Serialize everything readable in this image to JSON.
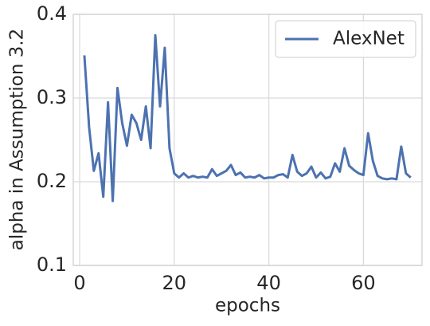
{
  "chart_data": {
    "type": "line",
    "x_label": "epochs",
    "y_label": "alpha in Assumption 3.2",
    "x": [
      1,
      2,
      3,
      4,
      5,
      6,
      7,
      8,
      9,
      10,
      11,
      12,
      13,
      14,
      15,
      16,
      17,
      18,
      19,
      20,
      21,
      22,
      23,
      24,
      25,
      26,
      27,
      28,
      29,
      30,
      31,
      32,
      33,
      34,
      35,
      36,
      37,
      38,
      39,
      40,
      41,
      42,
      43,
      44,
      45,
      46,
      47,
      48,
      49,
      50,
      51,
      52,
      53,
      54,
      55,
      56,
      57,
      58,
      59,
      60,
      61,
      62,
      63,
      64,
      65,
      66,
      67,
      68,
      69,
      70
    ],
    "series": [
      {
        "name": "AlexNet",
        "color": "#4c72b0",
        "values": [
          0.351,
          0.265,
          0.213,
          0.234,
          0.182,
          0.295,
          0.177,
          0.312,
          0.27,
          0.243,
          0.28,
          0.27,
          0.25,
          0.29,
          0.24,
          0.375,
          0.29,
          0.36,
          0.24,
          0.21,
          0.205,
          0.21,
          0.205,
          0.207,
          0.205,
          0.206,
          0.205,
          0.215,
          0.207,
          0.21,
          0.213,
          0.22,
          0.208,
          0.211,
          0.205,
          0.206,
          0.205,
          0.208,
          0.204,
          0.205,
          0.205,
          0.208,
          0.209,
          0.205,
          0.232,
          0.212,
          0.207,
          0.21,
          0.218,
          0.205,
          0.211,
          0.204,
          0.206,
          0.222,
          0.212,
          0.24,
          0.219,
          0.214,
          0.21,
          0.208,
          0.258,
          0.225,
          0.207,
          0.204,
          0.203,
          0.204,
          0.203,
          0.242,
          0.21,
          0.205
        ]
      }
    ],
    "xlim": [
      -1.35,
      72.4
    ],
    "xticks": [
      0,
      20,
      40,
      60
    ],
    "ylim": [
      0.1,
      0.4
    ],
    "yticks": [
      {
        "value": 0.1,
        "label": "0.1"
      },
      {
        "value": 0.2,
        "label": "0.2"
      },
      {
        "value": 0.3,
        "label": "0.3"
      },
      {
        "value": 0.4,
        "label": "0.4"
      }
    ],
    "grid": true,
    "legend": "upper right"
  }
}
